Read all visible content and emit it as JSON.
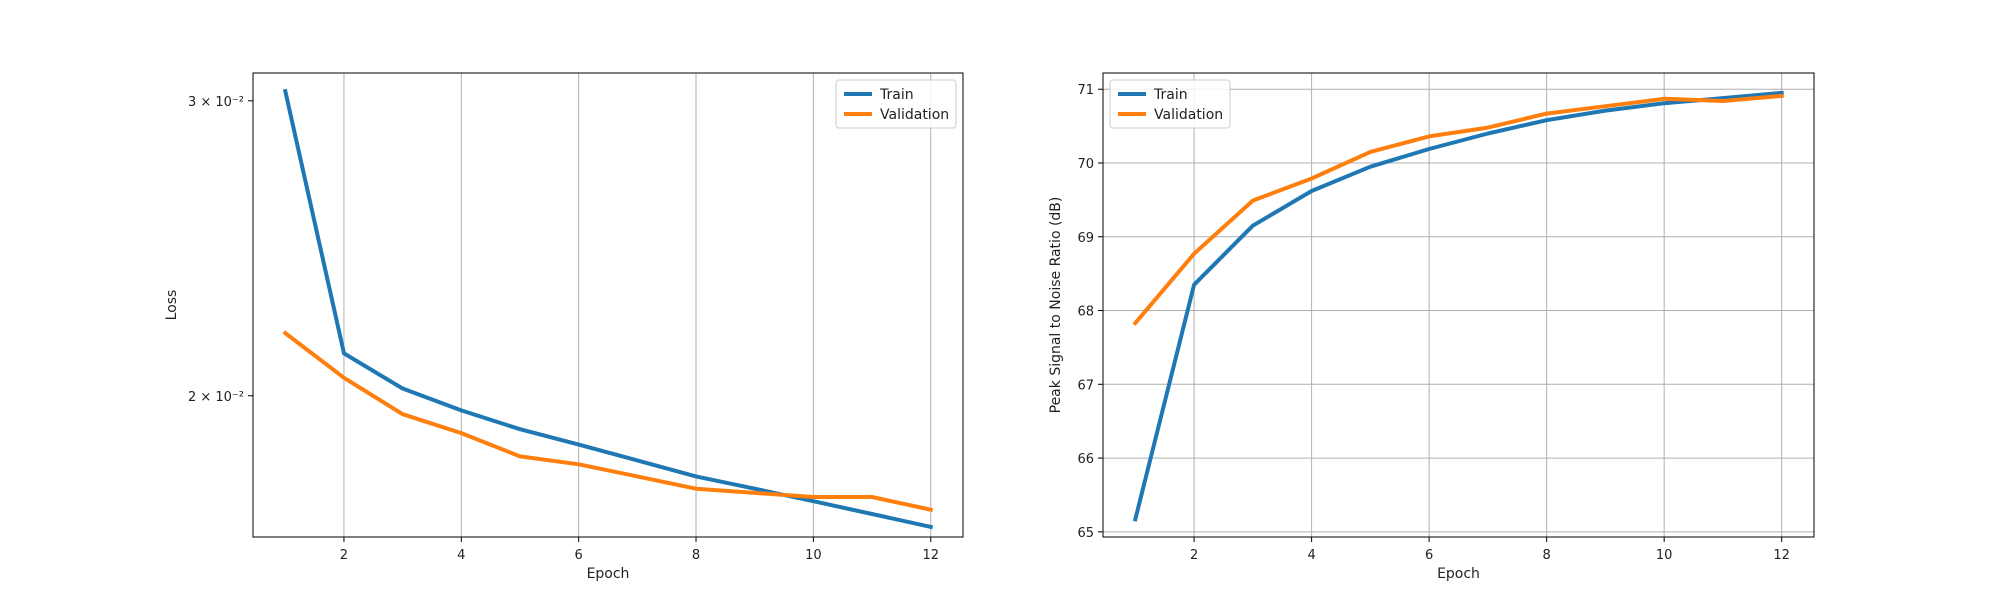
{
  "chart_data": [
    {
      "type": "line",
      "xlabel": "Epoch",
      "ylabel": "Loss",
      "yscale": "log",
      "xticks": [
        2,
        4,
        6,
        8,
        10,
        12
      ],
      "yticks": [
        {
          "value": 0.03,
          "label": "3 × 10⁻²"
        },
        {
          "value": 0.02,
          "label": "2 × 10⁻²"
        }
      ],
      "xlim": [
        0.45,
        12.55
      ],
      "ylim": [
        0.01647,
        0.03117
      ],
      "grid": "x",
      "legend": "top-right",
      "x": [
        1,
        2,
        3,
        4,
        5,
        6,
        7,
        8,
        9,
        10,
        11,
        12
      ],
      "series": [
        {
          "name": "Train",
          "color": "#1f77b4",
          "values": [
            0.0304,
            0.0212,
            0.0202,
            0.0196,
            0.0191,
            0.0187,
            0.0183,
            0.0179,
            0.0176,
            0.0173,
            0.017,
            0.0167
          ]
        },
        {
          "name": "Validation",
          "color": "#ff7f0e",
          "values": [
            0.0218,
            0.0205,
            0.0195,
            0.019,
            0.0184,
            0.0182,
            0.0179,
            0.0176,
            0.0175,
            0.0174,
            0.0174,
            0.0171
          ]
        }
      ]
    },
    {
      "type": "line",
      "xlabel": "Epoch",
      "ylabel": "Peak Signal to Noise Ratio (dB)",
      "yscale": "linear",
      "xticks": [
        2,
        4,
        6,
        8,
        10,
        12
      ],
      "yticks": [
        {
          "value": 65,
          "label": "65"
        },
        {
          "value": 66,
          "label": "66"
        },
        {
          "value": 67,
          "label": "67"
        },
        {
          "value": 68,
          "label": "68"
        },
        {
          "value": 69,
          "label": "69"
        },
        {
          "value": 70,
          "label": "70"
        },
        {
          "value": 71,
          "label": "71"
        }
      ],
      "xlim": [
        0.45,
        12.55
      ],
      "ylim": [
        64.93,
        71.22
      ],
      "grid": "both",
      "legend": "top-left",
      "x": [
        1,
        2,
        3,
        4,
        5,
        6,
        7,
        8,
        9,
        10,
        11,
        12
      ],
      "series": [
        {
          "name": "Train",
          "color": "#1f77b4",
          "values": [
            65.17,
            68.35,
            69.15,
            69.62,
            69.95,
            70.19,
            70.4,
            70.58,
            70.71,
            70.81,
            70.88,
            70.95
          ]
        },
        {
          "name": "Validation",
          "color": "#ff7f0e",
          "values": [
            67.83,
            68.77,
            69.49,
            69.79,
            70.15,
            70.36,
            70.48,
            70.67,
            70.77,
            70.87,
            70.84,
            70.91
          ]
        }
      ]
    }
  ]
}
